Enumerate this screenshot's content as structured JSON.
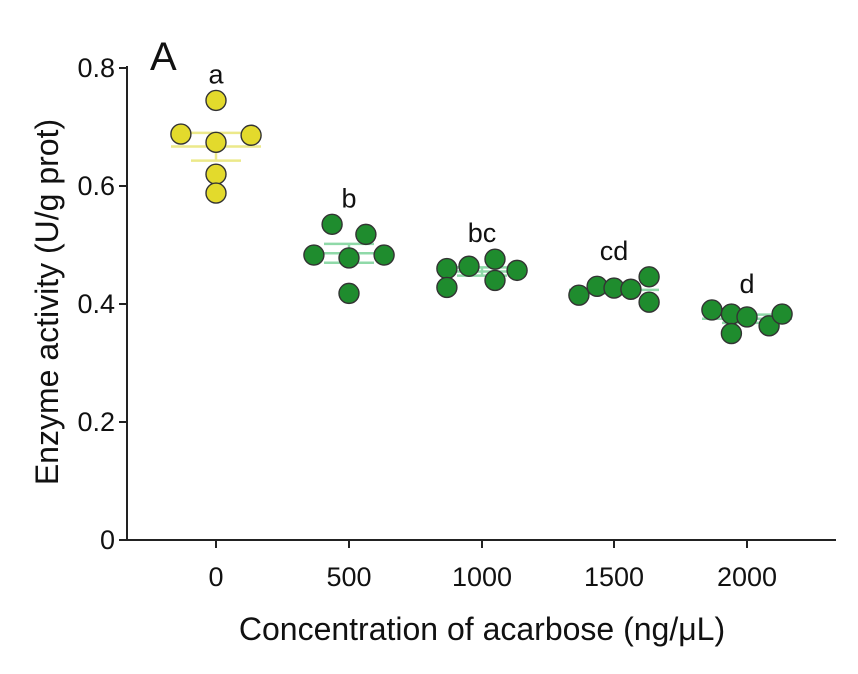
{
  "chart_data": {
    "type": "scatter",
    "panel_label": "A",
    "xlabel": "Concentration of acarbose (ng/μL)",
    "ylabel": "Enzyme activity (U/g prot)",
    "ylim": [
      0,
      0.8
    ],
    "yticks": [
      "0",
      "0.2",
      "0.4",
      "0.6",
      "0.8"
    ],
    "categories": [
      "0",
      "500",
      "1000",
      "1500",
      "2000"
    ],
    "groups": [
      {
        "category": "0",
        "significance": "a",
        "color": "#e3da2c",
        "mean_bar_color": "#ece98a",
        "points": [
          {
            "offset": -0.27,
            "y": 0.688
          },
          {
            "offset": 0.0,
            "y": 0.745
          },
          {
            "offset": 0.0,
            "y": 0.674
          },
          {
            "offset": 0.0,
            "y": 0.62
          },
          {
            "offset": 0.0,
            "y": 0.588
          },
          {
            "offset": 0.27,
            "y": 0.686
          }
        ],
        "mean": 0.667,
        "sem_low": 0.643,
        "sem_high": 0.69
      },
      {
        "category": "500",
        "significance": "b",
        "color": "#1f8c2e",
        "mean_bar_color": "#8fd9a8",
        "points": [
          {
            "offset": -0.27,
            "y": 0.483
          },
          {
            "offset": -0.13,
            "y": 0.535
          },
          {
            "offset": 0.0,
            "y": 0.478
          },
          {
            "offset": 0.0,
            "y": 0.418
          },
          {
            "offset": 0.13,
            "y": 0.518
          },
          {
            "offset": 0.27,
            "y": 0.483
          }
        ],
        "mean": 0.486,
        "sem_low": 0.47,
        "sem_high": 0.502
      },
      {
        "category": "1000",
        "significance": "bc",
        "color": "#1f8c2e",
        "mean_bar_color": "#8fd9a8",
        "points": [
          {
            "offset": -0.27,
            "y": 0.46
          },
          {
            "offset": -0.27,
            "y": 0.428
          },
          {
            "offset": -0.1,
            "y": 0.464
          },
          {
            "offset": 0.1,
            "y": 0.476
          },
          {
            "offset": 0.1,
            "y": 0.44
          },
          {
            "offset": 0.27,
            "y": 0.457
          }
        ],
        "mean": 0.455,
        "sem_low": 0.448,
        "sem_high": 0.462
      },
      {
        "category": "1500",
        "significance": "cd",
        "color": "#1f8c2e",
        "mean_bar_color": "#8fd9a8",
        "points": [
          {
            "offset": -0.27,
            "y": 0.415
          },
          {
            "offset": -0.13,
            "y": 0.43
          },
          {
            "offset": 0.0,
            "y": 0.427
          },
          {
            "offset": 0.13,
            "y": 0.425
          },
          {
            "offset": 0.27,
            "y": 0.446
          },
          {
            "offset": 0.27,
            "y": 0.403
          }
        ],
        "mean": 0.424,
        "sem_low": 0.418,
        "sem_high": 0.43
      },
      {
        "category": "2000",
        "significance": "d",
        "color": "#1f8c2e",
        "mean_bar_color": "#8fd9a8",
        "points": [
          {
            "offset": -0.27,
            "y": 0.39
          },
          {
            "offset": -0.12,
            "y": 0.383
          },
          {
            "offset": -0.12,
            "y": 0.35
          },
          {
            "offset": 0.0,
            "y": 0.378
          },
          {
            "offset": 0.17,
            "y": 0.363
          },
          {
            "offset": 0.27,
            "y": 0.383
          }
        ],
        "mean": 0.375,
        "sem_low": 0.368,
        "sem_high": 0.382
      }
    ],
    "grid": false,
    "legend": "none"
  }
}
